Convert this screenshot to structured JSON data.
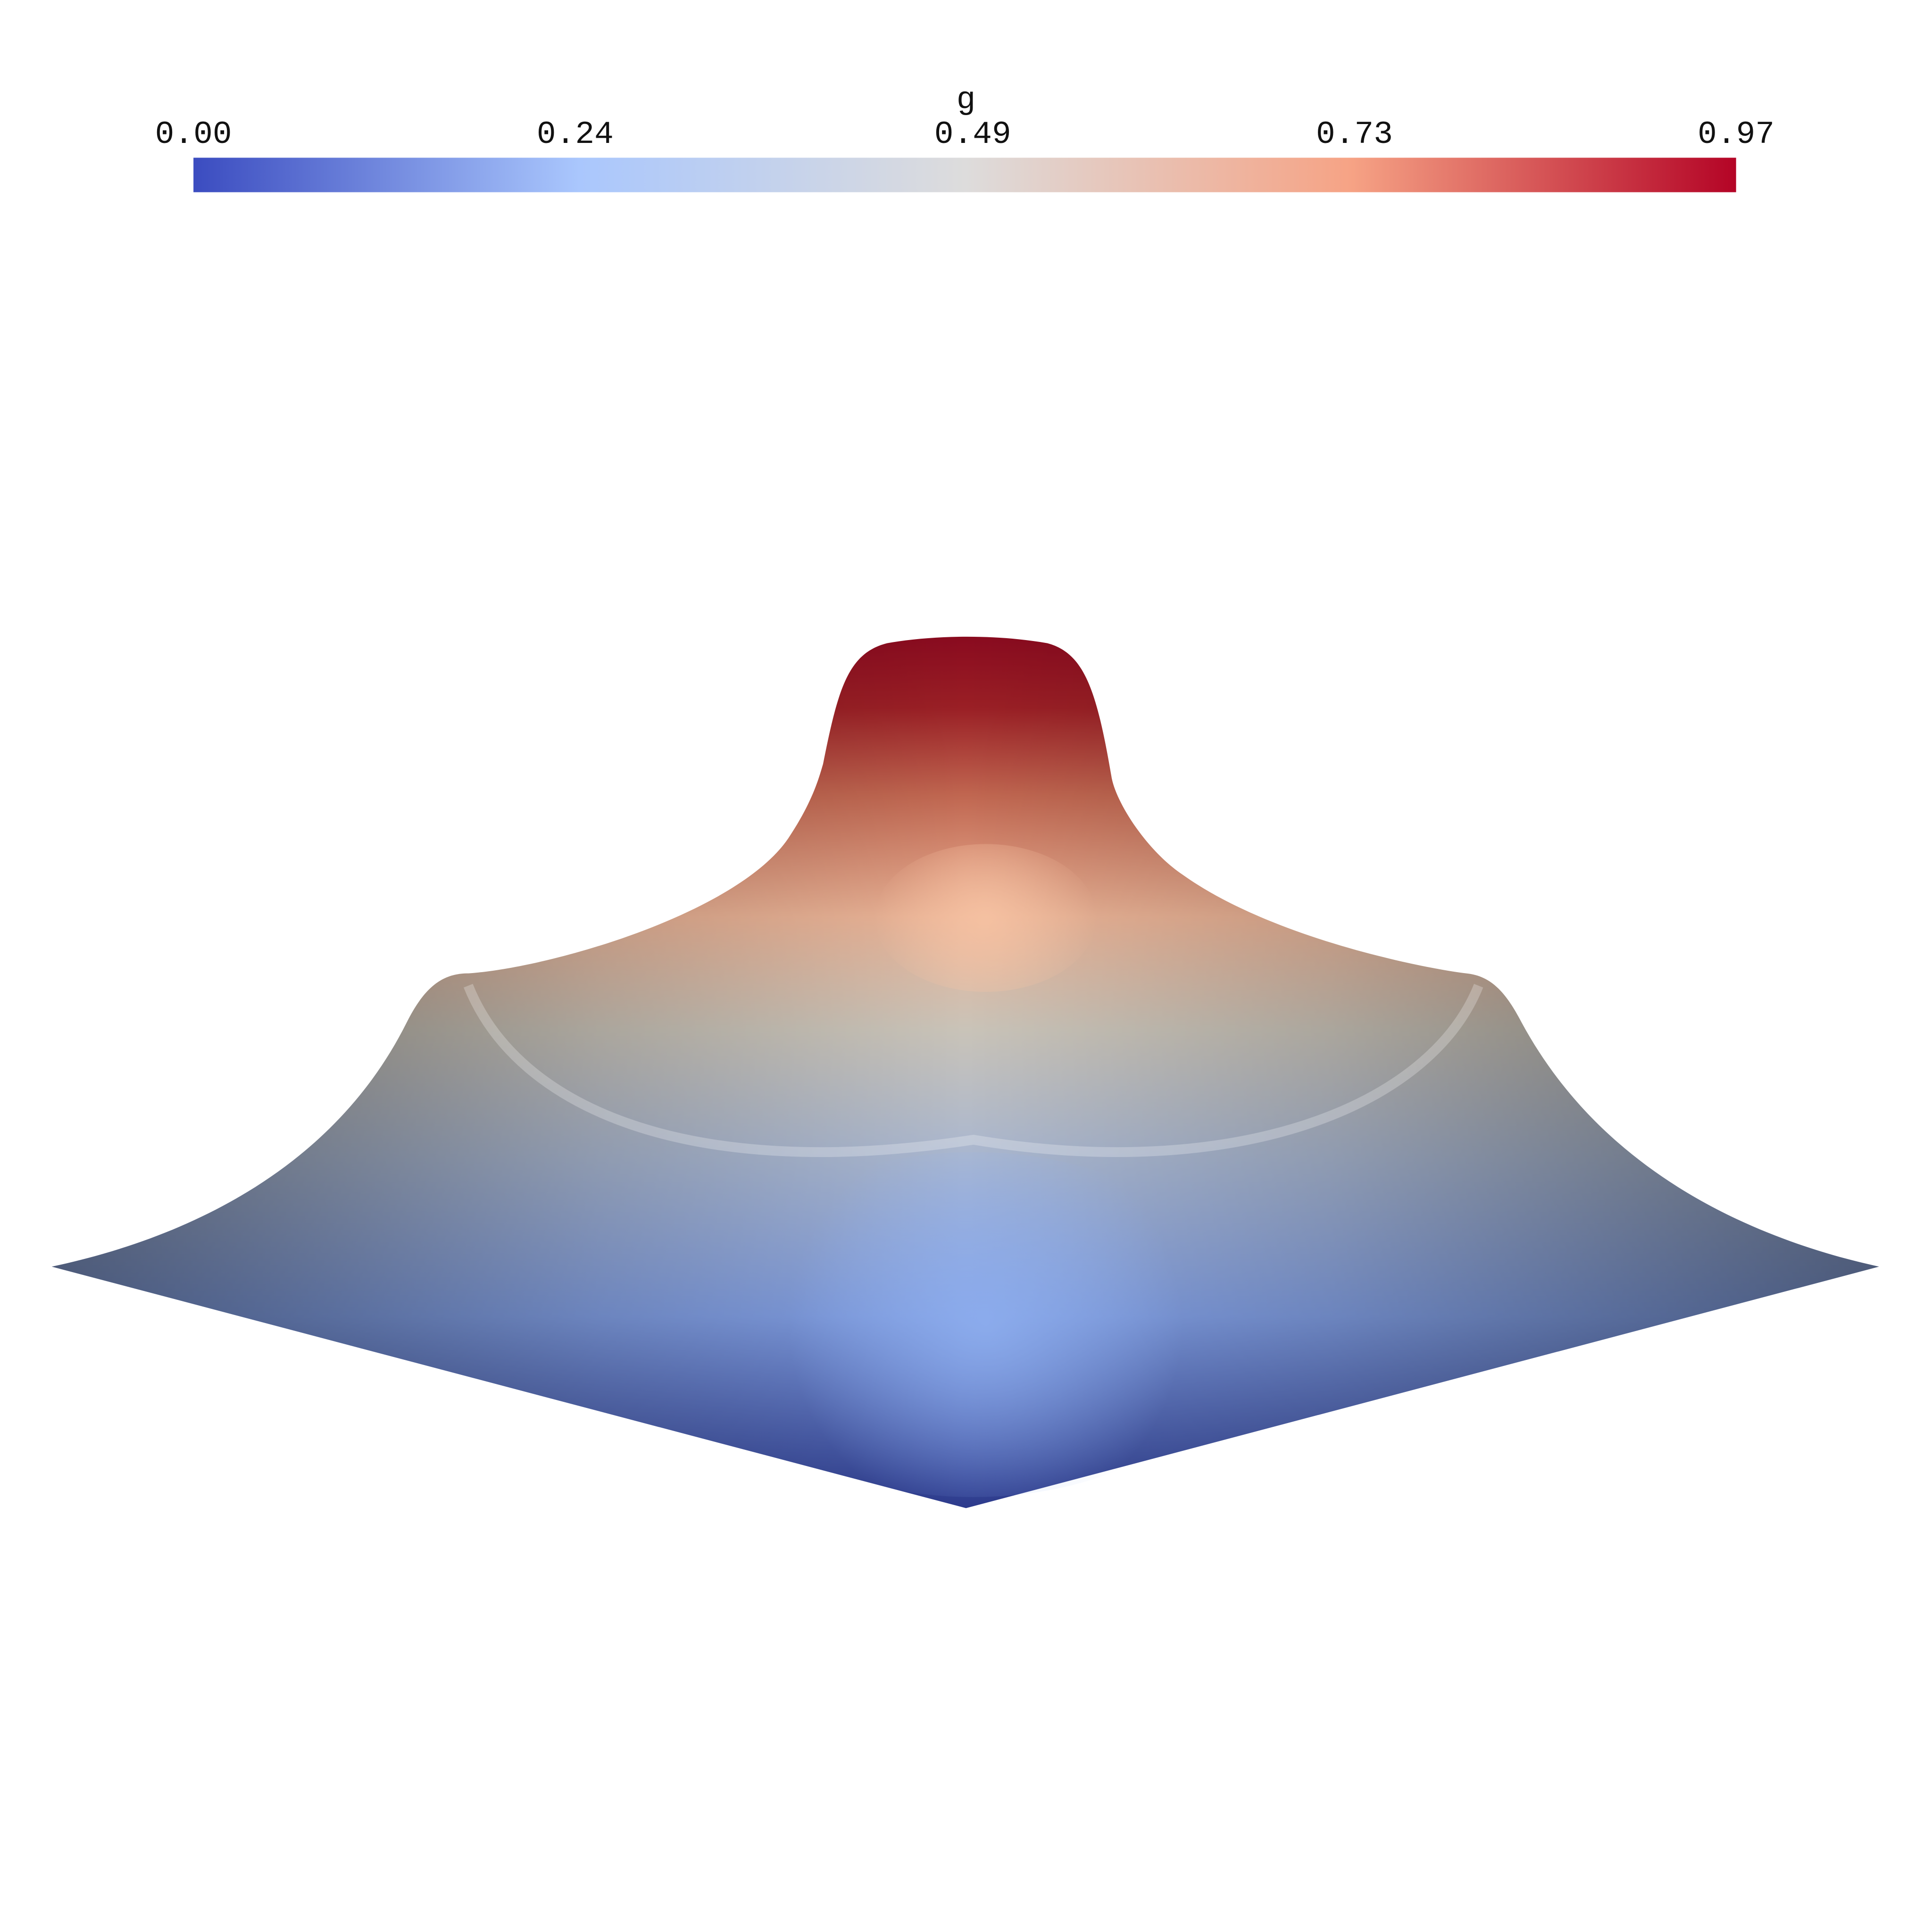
{
  "chart_data": {
    "type": "surface",
    "colorbar_title": "g",
    "clim": [
      0,
      0.97
    ],
    "cticks": [
      {
        "value": 0,
        "label": "0.00"
      },
      {
        "value": 0.24,
        "label": "0.24"
      },
      {
        "value": 0.49,
        "label": "0.49"
      },
      {
        "value": 0.73,
        "label": "0.73"
      },
      {
        "value": 0.97,
        "label": "0.97"
      }
    ],
    "colormap": [
      "#3b4cc0",
      "#aac7fd",
      "#dddcdc",
      "#f6a385",
      "#b40426"
    ]
  }
}
